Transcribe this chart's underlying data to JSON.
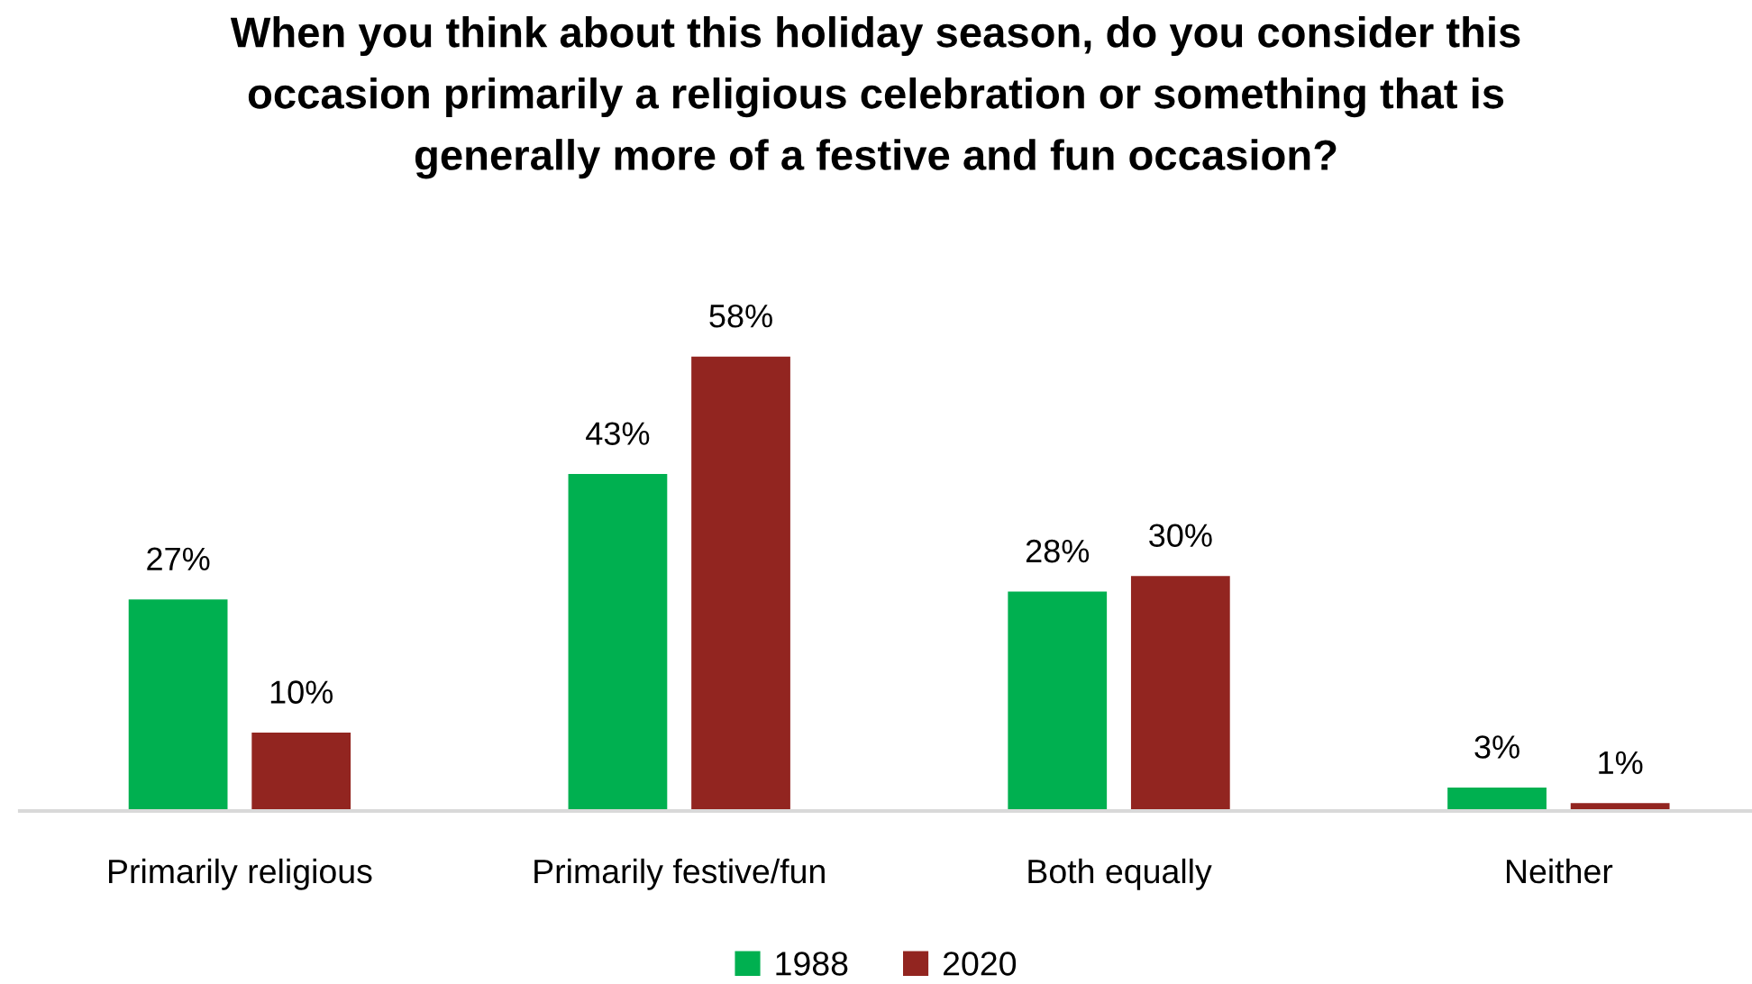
{
  "chart_data": {
    "type": "bar",
    "title": "When you think about this holiday season, do you consider this\noccasion primarily a religious celebration or something that is\ngenerally more of a festive and fun occasion?",
    "categories": [
      "Primarily religious",
      "Primarily festive/fun",
      "Both equally",
      "Neither"
    ],
    "series": [
      {
        "name": "1988",
        "color": "#00b050",
        "values": [
          27,
          43,
          28,
          3
        ],
        "value_labels": [
          "27%",
          "43%",
          "28%",
          "3%"
        ]
      },
      {
        "name": "2020",
        "color": "#922520",
        "values": [
          10,
          58,
          30,
          1
        ],
        "value_labels": [
          "10%",
          "58%",
          "30%",
          "1%"
        ]
      }
    ],
    "legend": "bottom",
    "tick_labels": "x"
  }
}
